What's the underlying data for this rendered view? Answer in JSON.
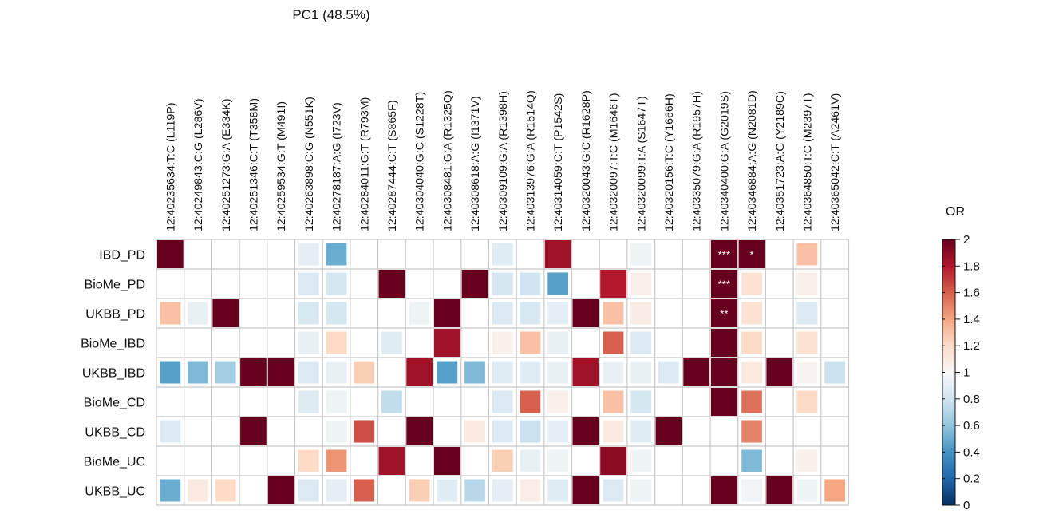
{
  "chart_data": {
    "type": "heatmap",
    "title": "PC1 (48.5%)",
    "columns": [
      "12:40235634:T:C (L119P)",
      "12:40249843:C:G (L286V)",
      "12:40251273:G:A (E334K)",
      "12:40251346:C:T (T358M)",
      "12:40259534:G:T (M491I)",
      "12:40263898:C:G (N551K)",
      "12:40278187:A:G (I723V)",
      "12:40284011:G:T (R793M)",
      "12:40287444:C:T (S865F)",
      "12:40304040:G:C (S1228T)",
      "12:40308481:G:A (R1325Q)",
      "12:40308618:A:G (I1371V)",
      "12:40309109:G:A (R1398H)",
      "12:40313976:G:A (R1514Q)",
      "12:40314059:C:T (P1542S)",
      "12:40320043:G:C (R1628P)",
      "12:40320097:T:C (M1646T)",
      "12:40320099:T:A (S1647T)",
      "12:40320156:T:C (Y1666H)",
      "12:40335079:G:A (R1957H)",
      "12:40340400:G:A (G2019S)",
      "12:40346884:A:G (N2081D)",
      "12:40351723:A:G (Y2189C)",
      "12:40364850:T:C (M2397T)",
      "12:40365042:C:T (A2461V)"
    ],
    "rows": [
      "IBD_PD",
      "BioMe_PD",
      "UKBB_PD",
      "BioMe_IBD",
      "UKBB_IBD",
      "BioMe_CD",
      "UKBB_CD",
      "BioMe_UC",
      "UKBB_UC"
    ],
    "values": [
      [
        2.0,
        null,
        null,
        null,
        null,
        0.9,
        0.5,
        null,
        null,
        null,
        null,
        null,
        0.88,
        null,
        1.85,
        null,
        null,
        0.95,
        null,
        null,
        2.0,
        2.0,
        null,
        1.3,
        null
      ],
      [
        null,
        null,
        null,
        null,
        null,
        0.85,
        0.82,
        null,
        2.0,
        null,
        null,
        2.0,
        0.82,
        0.8,
        0.45,
        null,
        1.8,
        1.05,
        null,
        null,
        2.0,
        1.15,
        null,
        1.05,
        null
      ],
      [
        1.3,
        0.92,
        2.0,
        null,
        null,
        0.83,
        0.82,
        null,
        null,
        0.95,
        2.0,
        null,
        0.85,
        0.83,
        0.9,
        2.0,
        1.3,
        1.08,
        null,
        null,
        2.0,
        1.15,
        null,
        0.85,
        null
      ],
      [
        null,
        null,
        null,
        null,
        null,
        0.92,
        1.2,
        null,
        0.88,
        null,
        1.85,
        null,
        1.05,
        1.3,
        0.92,
        null,
        1.6,
        0.85,
        null,
        null,
        2.0,
        1.2,
        null,
        1.15,
        null
      ],
      [
        0.45,
        0.55,
        0.65,
        2.0,
        2.0,
        0.85,
        0.92,
        1.25,
        null,
        1.85,
        0.45,
        0.55,
        0.88,
        0.88,
        0.92,
        1.85,
        0.92,
        0.92,
        0.85,
        2.0,
        2.0,
        1.1,
        2.0,
        1.03,
        0.78
      ],
      [
        null,
        null,
        null,
        null,
        null,
        0.87,
        0.95,
        null,
        0.75,
        null,
        null,
        null,
        0.85,
        1.6,
        1.05,
        null,
        1.3,
        0.82,
        null,
        null,
        2.0,
        1.55,
        null,
        1.2,
        null
      ],
      [
        0.85,
        null,
        null,
        2.0,
        null,
        null,
        0.95,
        1.65,
        null,
        2.0,
        null,
        1.1,
        0.85,
        0.78,
        0.9,
        2.0,
        1.1,
        0.88,
        2.0,
        null,
        null,
        1.5,
        null,
        null,
        null
      ],
      [
        null,
        null,
        null,
        null,
        null,
        1.2,
        1.45,
        null,
        1.85,
        null,
        2.0,
        null,
        1.25,
        0.92,
        0.95,
        null,
        1.9,
        0.95,
        null,
        null,
        null,
        0.55,
        null,
        1.05,
        null
      ],
      [
        0.5,
        1.1,
        1.2,
        null,
        2.0,
        0.85,
        0.9,
        1.6,
        null,
        1.25,
        0.88,
        0.72,
        0.9,
        1.07,
        0.88,
        2.0,
        0.85,
        0.95,
        null,
        null,
        2.0,
        0.97,
        2.0,
        0.95,
        1.4
      ]
    ],
    "annotations": [
      {
        "row": "IBD_PD",
        "column": "12:40340400:G:A (G2019S)",
        "text": "***"
      },
      {
        "row": "IBD_PD",
        "column": "12:40346884:A:G (N2081D)",
        "text": "*"
      },
      {
        "row": "BioMe_PD",
        "column": "12:40340400:G:A (G2019S)",
        "text": "***"
      },
      {
        "row": "UKBB_PD",
        "column": "12:40340400:G:A (G2019S)",
        "text": "**"
      }
    ],
    "colorbar": {
      "title": "OR",
      "min": 0,
      "max": 2,
      "ticks": [
        "0",
        "0.2",
        "0.4",
        "0.6",
        "0.8",
        "1",
        "1.2",
        "1.4",
        "1.6",
        "1.8",
        "2"
      ],
      "colors": [
        "#053061",
        "#2166ac",
        "#4393c3",
        "#92c5de",
        "#d1e5f0",
        "#f7f7f7",
        "#fddbc7",
        "#f4a582",
        "#d6604d",
        "#b2182b",
        "#67001f"
      ]
    },
    "grid": true,
    "legend_position": "right"
  }
}
